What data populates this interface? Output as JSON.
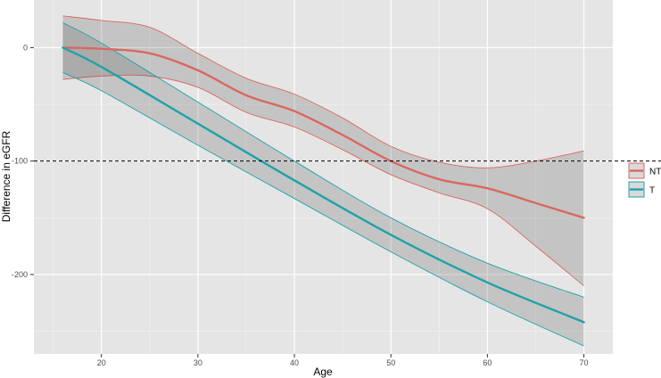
{
  "chart_data": {
    "type": "line",
    "title": "",
    "xlabel": "Age",
    "ylabel": "Difference in eGFR",
    "xlim": [
      13,
      73
    ],
    "ylim": [
      -270,
      42
    ],
    "x_ticks": [
      20,
      30,
      40,
      50,
      60,
      70
    ],
    "y_ticks": [
      0,
      -100,
      -200
    ],
    "x_tick_labels": [
      "20",
      "30",
      "40",
      "50",
      "60",
      "70"
    ],
    "y_tick_labels": [
      "0",
      "-100",
      "-200"
    ],
    "grid": true,
    "legend_position": "right",
    "reference_line": {
      "y": -100,
      "style": "dashed"
    },
    "series": [
      {
        "name": "NT",
        "color": "#d9685f",
        "x": [
          16,
          20,
          25,
          30,
          35,
          40,
          45,
          50,
          55,
          60,
          65,
          70
        ],
        "y": [
          0,
          -1,
          -5,
          -20,
          -42,
          -56,
          -77,
          -100,
          -116,
          -124,
          -137,
          -150
        ],
        "lower": [
          -28,
          -25,
          -25,
          -35,
          -57,
          -70,
          -90,
          -112,
          -128,
          -142,
          -175,
          -210
        ],
        "upper": [
          28,
          24,
          18,
          -5,
          -27,
          -41,
          -62,
          -87,
          -101,
          -106,
          -100,
          -91
        ]
      },
      {
        "name": "T",
        "color": "#1ea3a9",
        "x": [
          16,
          20,
          30,
          40,
          50,
          60,
          70
        ],
        "y": [
          0,
          -17,
          -67,
          -117,
          -165,
          -207,
          -242
        ],
        "lower": [
          -22,
          -38,
          -86,
          -133,
          -180,
          -224,
          -263
        ],
        "upper": [
          22,
          4,
          -48,
          -100,
          -150,
          -190,
          -220
        ]
      }
    ]
  }
}
